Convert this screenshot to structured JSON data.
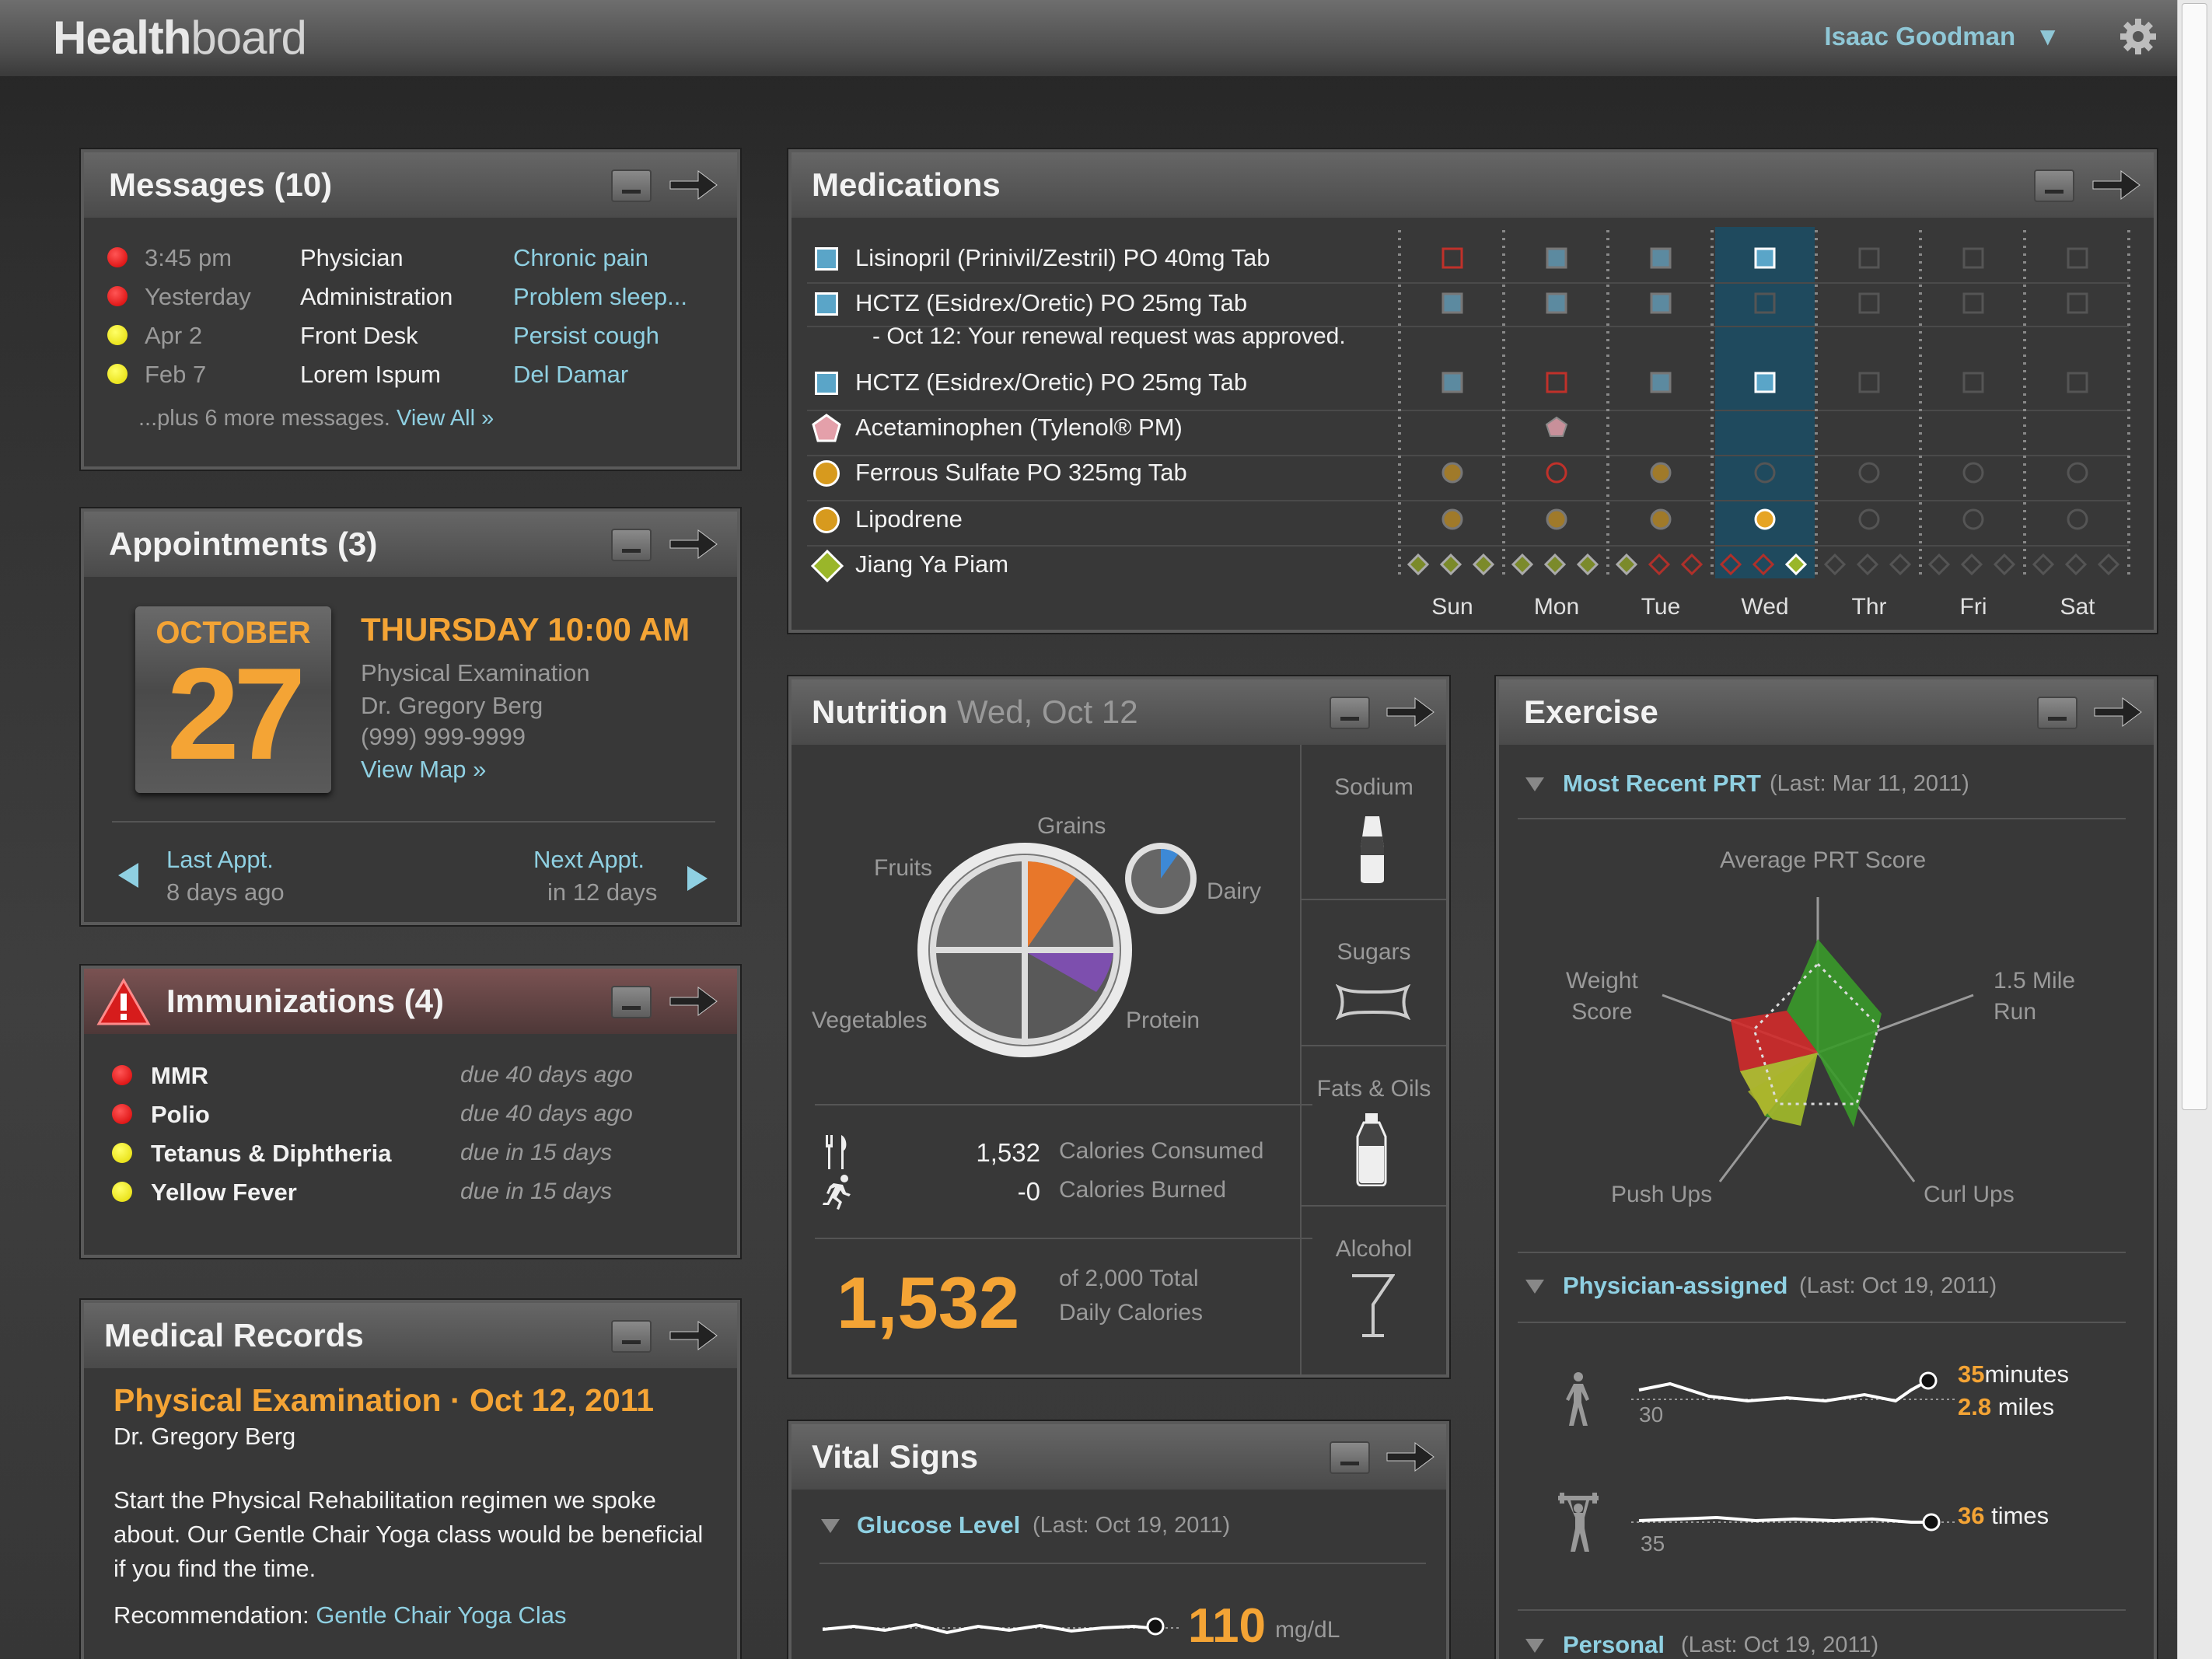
{
  "app": {
    "logo_bold": "Health",
    "logo_light": "board",
    "user": "Isaac Goodman"
  },
  "messages": {
    "title": "Messages (10)",
    "items": [
      {
        "time": "3:45 pm",
        "from": "Physician",
        "subject": "Chronic pain",
        "status": "red"
      },
      {
        "time": "Yesterday",
        "from": "Administration",
        "subject": "Problem sleep...",
        "status": "red"
      },
      {
        "time": "Apr 2",
        "from": "Front Desk",
        "subject": "Persist cough",
        "status": "yellow"
      },
      {
        "time": "Feb 7",
        "from": "Lorem Ispum",
        "subject": "Del Damar",
        "status": "yellow"
      }
    ],
    "more": "...plus 6 more messages.",
    "view_all": "View All »"
  },
  "appointments": {
    "title": "Appointments (3)",
    "month": "OCTOBER",
    "day": "27",
    "when": "THURSDAY 10:00 AM",
    "type": "Physical Examination",
    "doctor": "Dr. Gregory Berg",
    "phone": "(999) 999-9999",
    "map": "View Map »",
    "last_label": "Last Appt.",
    "last_when": "8 days ago",
    "next_label": "Next  Appt.",
    "next_when": "in 12 days"
  },
  "immunizations": {
    "title": "Immunizations (4)",
    "items": [
      {
        "name": "MMR",
        "due": "due 40 days ago",
        "status": "red"
      },
      {
        "name": "Polio",
        "due": "due 40 days ago",
        "status": "red"
      },
      {
        "name": "Tetanus & Diphtheria",
        "due": "due in 15 days",
        "status": "yellow"
      },
      {
        "name": "Yellow Fever",
        "due": "due in 15 days",
        "status": "yellow"
      }
    ]
  },
  "records": {
    "title": "Medical Records",
    "heading": "Physical Examination · Oct 12, 2011",
    "doctor": "Dr. Gregory Berg",
    "body": [
      "Start the Physical Rehabilitation regimen we spoke",
      "about. Our Gentle Chair Yoga class would be beneficial",
      "if you find the time."
    ],
    "rec_label": "Recommendation: ",
    "rec_link": "Gentle Chair Yoga Clas"
  },
  "medications": {
    "title": "Medications",
    "days": [
      "Sun",
      "Mon",
      "Tue",
      "Wed",
      "Thr",
      "Fri",
      "Sat"
    ],
    "items": [
      {
        "name": "Lisinopril (Prinivil/Zestril) PO 40mg Tab",
        "note": "",
        "shape": "square"
      },
      {
        "name": "HCTZ (Esidrex/Oretic) PO 25mg Tab",
        "note": "- Oct 12: Your renewal request was approved.",
        "shape": "square"
      },
      {
        "name": "HCTZ (Esidrex/Oretic) PO 25mg Tab",
        "note": "",
        "shape": "square"
      },
      {
        "name": "Acetaminophen (Tylenol® PM)",
        "note": "",
        "shape": "pentagon"
      },
      {
        "name": "Ferrous Sulfate PO 325mg Tab",
        "note": "",
        "shape": "circle"
      },
      {
        "name": "Lipodrene",
        "note": "",
        "shape": "circle"
      },
      {
        "name": "Jiang Ya Piam",
        "note": "",
        "shape": "diamond"
      }
    ]
  },
  "nutrition": {
    "title": "Nutrition",
    "date": "Wed, Oct 12",
    "groups": {
      "grains": "Grains",
      "fruits": "Fruits",
      "dairy": "Dairy",
      "vegetables": "Vegetables",
      "protein": "Protein"
    },
    "consumed_value": "1,532",
    "consumed_label": "Calories Consumed",
    "burned_value": "-0",
    "burned_label": "Calories Burned",
    "total": "1,532",
    "total_line1": "of 2,000 Total",
    "total_line2": "Daily Calories",
    "side": [
      "Sodium",
      "Sugars",
      "Fats & Oils",
      "Alcohol"
    ]
  },
  "vitals": {
    "title": "Vital Signs",
    "section": "Glucose Level",
    "last": "(Last: Oct 19, 2011)",
    "value": "110",
    "unit": "mg/dL"
  },
  "exercise": {
    "title": "Exercise",
    "prt": {
      "section": "Most Recent PRT",
      "last": "(Last: Mar 11, 2011)",
      "axes": [
        "Average PRT Score",
        "1.5 Mile Run",
        "Curl Ups",
        "Push Ups",
        "Weight Score"
      ],
      "run_label_1": "1.5 Mile",
      "run_label_2": "Run",
      "weight_label_1": "Weight",
      "weight_label_2": "Score"
    },
    "physician": {
      "section": "Physician-assigned",
      "last": "(Last: Oct 19, 2011)",
      "walk_base": "30",
      "walk_minutes": "35",
      "walk_minutes_unit": "minutes",
      "walk_miles": "2.8",
      "walk_miles_unit": "miles",
      "lift_base": "35",
      "lift_times": "36",
      "lift_times_unit": "times"
    },
    "personal": {
      "section": "Personal",
      "last": "(Last: Oct 19, 2011)"
    }
  },
  "colors": {
    "accent_orange": "#f4a435",
    "link_blue": "#8fd0e2",
    "med_blue": "#5aa5c8"
  }
}
